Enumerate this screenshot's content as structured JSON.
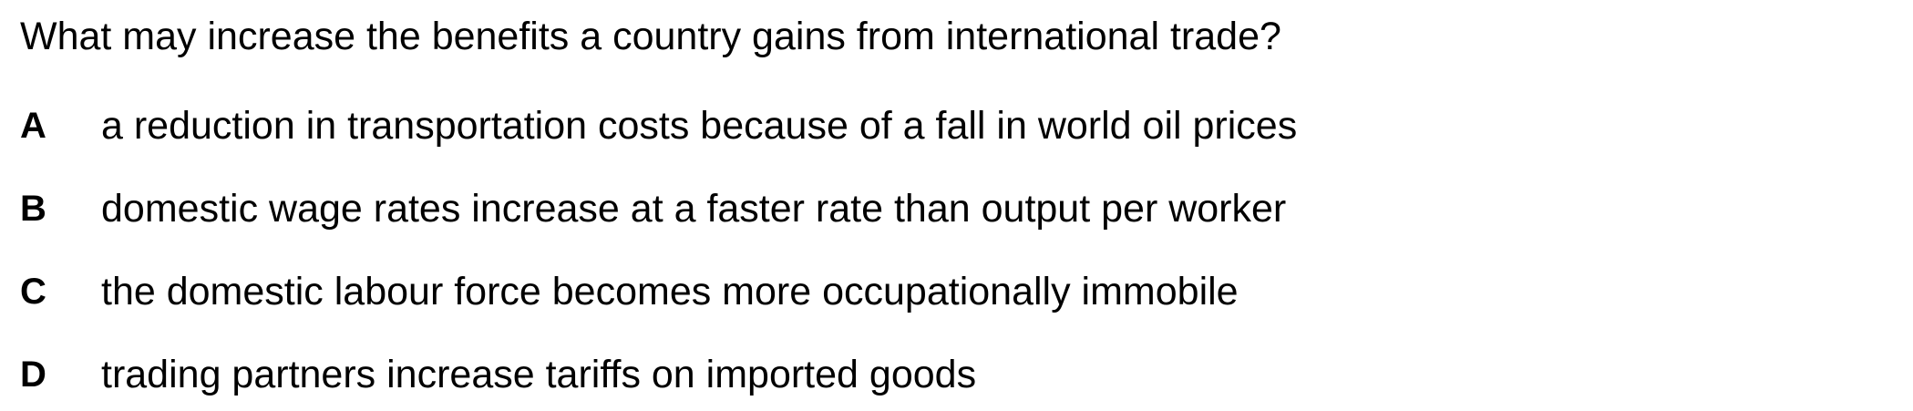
{
  "question": {
    "text": "What may increase the benefits a country gains from international trade?"
  },
  "options": [
    {
      "letter": "A",
      "text": "a reduction in transportation costs because of a fall in world oil prices"
    },
    {
      "letter": "B",
      "text": "domestic wage rates increase at a faster rate than output per worker"
    },
    {
      "letter": "C",
      "text": "the domestic labour force becomes more occupationally immobile"
    },
    {
      "letter": "D",
      "text": "trading partners increase tariffs on imported goods"
    }
  ]
}
